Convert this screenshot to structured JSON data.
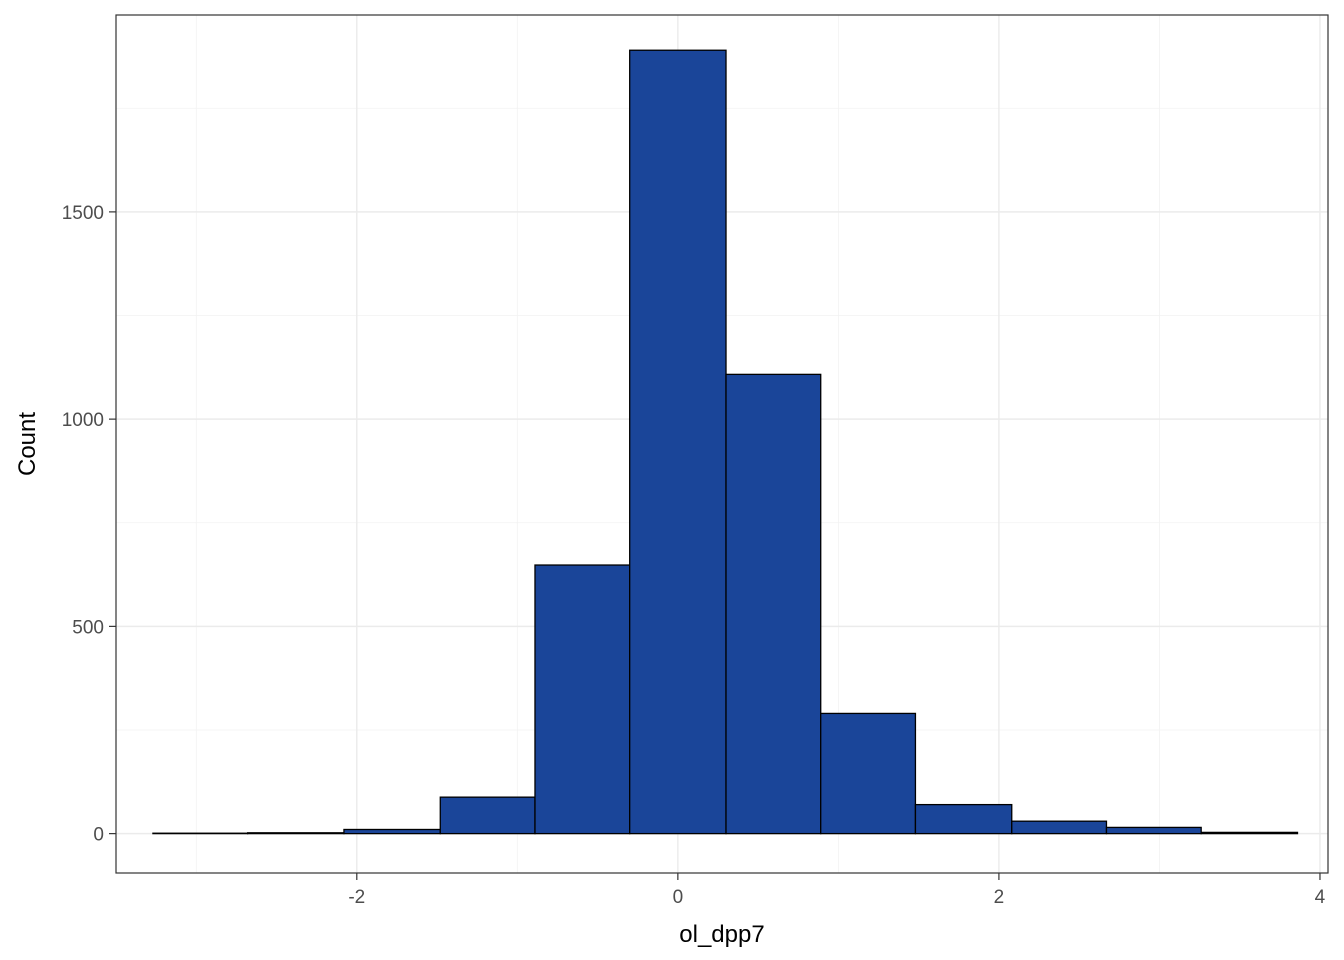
{
  "chart_data": {
    "type": "bar",
    "subtype": "histogram",
    "xlabel": "ol_dpp7",
    "ylabel": "Count",
    "xlim": [
      -3.5,
      4.05
    ],
    "ylim": [
      -95,
      1975
    ],
    "x_ticks": [
      -2,
      0,
      2,
      4
    ],
    "x_tick_labels": [
      "-2",
      "0",
      "2",
      "4"
    ],
    "y_ticks": [
      0,
      500,
      1000,
      1500
    ],
    "y_tick_labels": [
      "0",
      "500",
      "1000",
      "1500"
    ],
    "bins": [
      {
        "x0": -3.27,
        "x1": -2.68,
        "count": 1
      },
      {
        "x0": -2.68,
        "x1": -2.08,
        "count": 2
      },
      {
        "x0": -2.08,
        "x1": -1.48,
        "count": 10
      },
      {
        "x0": -1.48,
        "x1": -0.89,
        "count": 88
      },
      {
        "x0": -0.89,
        "x1": -0.3,
        "count": 648
      },
      {
        "x0": -0.3,
        "x1": 0.3,
        "count": 1890
      },
      {
        "x0": 0.3,
        "x1": 0.89,
        "count": 1108
      },
      {
        "x0": 0.89,
        "x1": 1.48,
        "count": 290
      },
      {
        "x0": 1.48,
        "x1": 2.08,
        "count": 70
      },
      {
        "x0": 2.08,
        "x1": 2.67,
        "count": 30
      },
      {
        "x0": 2.67,
        "x1": 3.26,
        "count": 15
      },
      {
        "x0": 3.26,
        "x1": 3.86,
        "count": 3
      }
    ],
    "fill_color": "#1a4599",
    "outline_color": "#000000",
    "grid": true,
    "legend": "none"
  }
}
